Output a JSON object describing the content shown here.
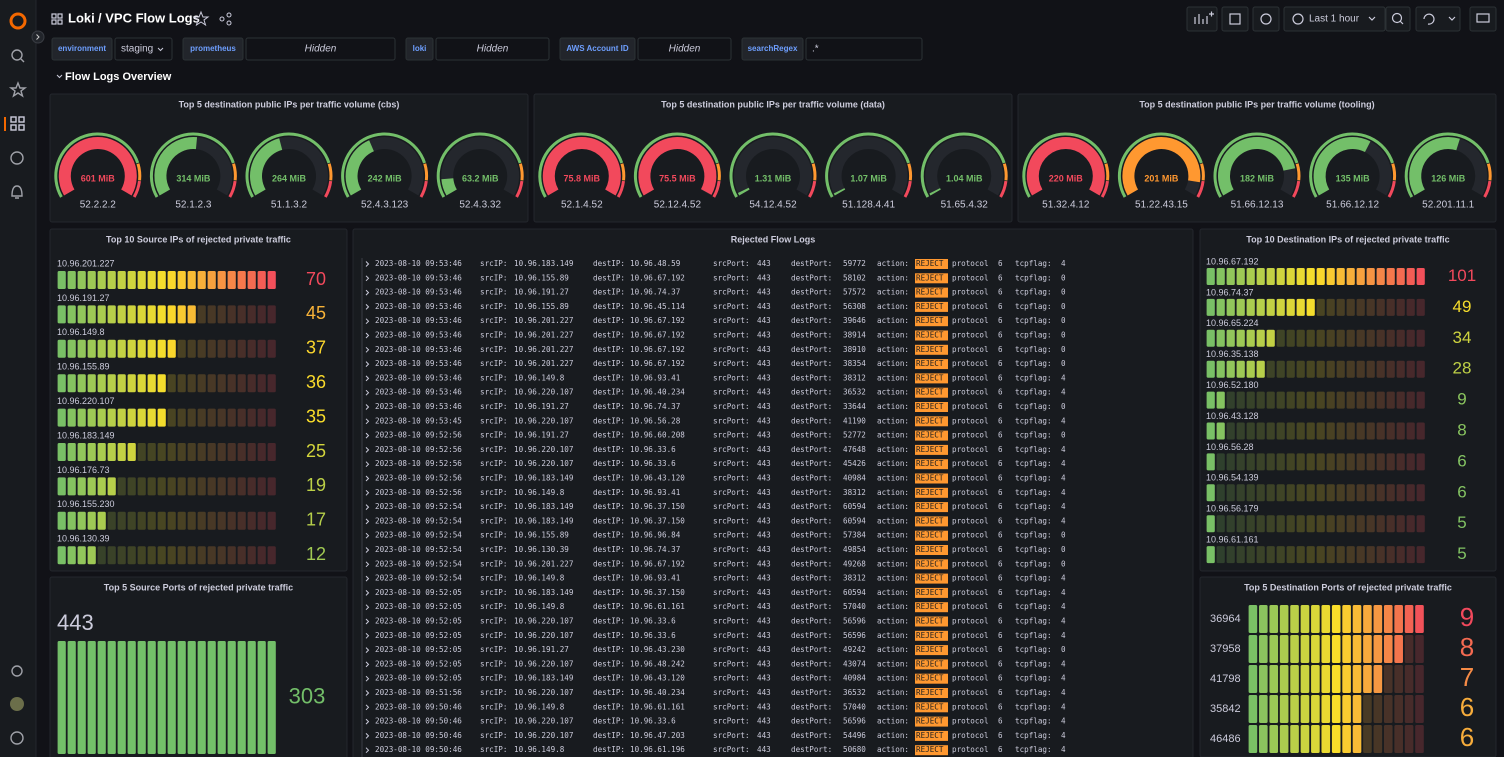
{
  "header": {
    "folder": "Loki",
    "title": "/ VPC Flow Logs",
    "time_range": "Last 1 hour"
  },
  "variables": [
    {
      "label": "environment",
      "value": "staging"
    },
    {
      "label": "prometheus",
      "value": "Hidden"
    },
    {
      "label": "loki",
      "value": "Hidden"
    },
    {
      "label": "AWS Account ID",
      "value": "Hidden"
    },
    {
      "label": "searchRegex",
      "value": ".*"
    }
  ],
  "row_title": "Flow Logs Overview",
  "gauge_panels": [
    {
      "title": "Top 5 destination public IPs per traffic volume (cbs)",
      "gauges": [
        {
          "label": "52.2.2.2",
          "value": 601,
          "value_label": "601 MiB",
          "color": "#f2495c"
        },
        {
          "label": "52.1.2.3",
          "value": 314,
          "value_label": "314 MiB",
          "color": "#73bf69"
        },
        {
          "label": "51.1.3.2",
          "value": 264,
          "value_label": "264 MiB",
          "color": "#73bf69"
        },
        {
          "label": "52.4.3.123",
          "value": 242,
          "value_label": "242 MiB",
          "color": "#73bf69"
        },
        {
          "label": "52.4.3.32",
          "value": 63.2,
          "value_label": "63.2 MiB",
          "color": "#73bf69"
        }
      ]
    },
    {
      "title": "Top 5 destination public IPs per traffic volume (data)",
      "gauges": [
        {
          "label": "52.1.4.52",
          "value": 75.8,
          "value_label": "75.8 MiB",
          "color": "#f2495c"
        },
        {
          "label": "52.12.4.52",
          "value": 75.5,
          "value_label": "75.5 MiB",
          "color": "#f2495c"
        },
        {
          "label": "54.12.4.52",
          "value": 1.31,
          "value_label": "1.31 MiB",
          "color": "#73bf69"
        },
        {
          "label": "51.128.4.41",
          "value": 1.07,
          "value_label": "1.07 MiB",
          "color": "#73bf69"
        },
        {
          "label": "51.65.4.32",
          "value": 1.04,
          "value_label": "1.04 MiB",
          "color": "#73bf69"
        }
      ]
    },
    {
      "title": "Top 5 destination public IPs per traffic volume (tooling)",
      "gauges": [
        {
          "label": "51.32.4.12",
          "value": 220,
          "value_label": "220 MiB",
          "color": "#f2495c"
        },
        {
          "label": "51.22.43.15",
          "value": 201,
          "value_label": "201 MiB",
          "color": "#ff9830"
        },
        {
          "label": "51.66.12.13",
          "value": 182,
          "value_label": "182 MiB",
          "color": "#73bf69"
        },
        {
          "label": "51.66.12.12",
          "value": 135,
          "value_label": "135 MiB",
          "color": "#73bf69"
        },
        {
          "label": "52.201.11.1",
          "value": 126,
          "value_label": "126 MiB",
          "color": "#73bf69"
        }
      ]
    }
  ],
  "source_ips": {
    "title": "Top 10 Source IPs of rejected private traffic",
    "colors": [
      "#73bf69",
      "#fade2a",
      "#f2495c"
    ],
    "items": [
      {
        "label": "10.96.201.227",
        "value": 70
      },
      {
        "label": "10.96.191.27",
        "value": 45
      },
      {
        "label": "10.96.149.8",
        "value": 37
      },
      {
        "label": "10.96.155.89",
        "value": 36
      },
      {
        "label": "10.96.220.107",
        "value": 35
      },
      {
        "label": "10.96.183.149",
        "value": 25
      },
      {
        "label": "10.96.176.73",
        "value": 19
      },
      {
        "label": "10.96.155.230",
        "value": 17
      },
      {
        "label": "10.96.130.39",
        "value": 12
      }
    ]
  },
  "destination_ips": {
    "title": "Top 10 Destination IPs of rejected private traffic",
    "colors": [
      "#73bf69",
      "#fade2a",
      "#f2495c"
    ],
    "items": [
      {
        "label": "10.96.67.192",
        "value": 101
      },
      {
        "label": "10.96.74.37",
        "value": 49
      },
      {
        "label": "10.96.65.224",
        "value": 34
      },
      {
        "label": "10.96.35.138",
        "value": 28
      },
      {
        "label": "10.96.52.180",
        "value": 9
      },
      {
        "label": "10.96.43.128",
        "value": 8
      },
      {
        "label": "10.96.56.28",
        "value": 6
      },
      {
        "label": "10.96.54.139",
        "value": 6
      },
      {
        "label": "10.96.56.179",
        "value": 5
      },
      {
        "label": "10.96.61.161",
        "value": 5
      }
    ]
  },
  "source_ports": {
    "title": "Top 5 Source Ports of rejected private traffic",
    "colors": [
      "#73bf69"
    ],
    "items": [
      {
        "label": "443",
        "value": 303
      }
    ]
  },
  "destination_ports": {
    "title": "Top 5 Destination Ports of rejected private traffic",
    "colors": [
      "#73bf69",
      "#fade2a",
      "#f2495c"
    ],
    "items": [
      {
        "label": "36964",
        "value": 9
      },
      {
        "label": "37958",
        "value": 8
      },
      {
        "label": "41798",
        "value": 7
      },
      {
        "label": "35842",
        "value": 6
      },
      {
        "label": "46486",
        "value": 6
      }
    ]
  },
  "logs": {
    "title": "Rejected Flow Logs",
    "field_labels": [
      "srcIP:",
      "destIP:",
      "srcPort:",
      "destPort:",
      "action:",
      "protocol",
      "tcpflag:"
    ],
    "rows": [
      [
        "2023-08-10 09:53:46",
        "10.96.183.149",
        "10.96.48.59",
        "443",
        "59772",
        "REJECT",
        "6",
        "4"
      ],
      [
        "2023-08-10 09:53:46",
        "10.96.155.89",
        "10.96.67.192",
        "443",
        "58102",
        "REJECT",
        "6",
        "0"
      ],
      [
        "2023-08-10 09:53:46",
        "10.96.191.27",
        "10.96.74.37",
        "443",
        "57572",
        "REJECT",
        "6",
        "0"
      ],
      [
        "2023-08-10 09:53:46",
        "10.96.155.89",
        "10.96.45.114",
        "443",
        "56308",
        "REJECT",
        "6",
        "0"
      ],
      [
        "2023-08-10 09:53:46",
        "10.96.201.227",
        "10.96.67.192",
        "443",
        "39646",
        "REJECT",
        "6",
        "0"
      ],
      [
        "2023-08-10 09:53:46",
        "10.96.201.227",
        "10.96.67.192",
        "443",
        "38914",
        "REJECT",
        "6",
        "0"
      ],
      [
        "2023-08-10 09:53:46",
        "10.96.201.227",
        "10.96.67.192",
        "443",
        "38910",
        "REJECT",
        "6",
        "0"
      ],
      [
        "2023-08-10 09:53:46",
        "10.96.201.227",
        "10.96.67.192",
        "443",
        "38354",
        "REJECT",
        "6",
        "0"
      ],
      [
        "2023-08-10 09:53:46",
        "10.96.149.8",
        "10.96.93.41",
        "443",
        "38312",
        "REJECT",
        "6",
        "4"
      ],
      [
        "2023-08-10 09:53:46",
        "10.96.220.107",
        "10.96.40.234",
        "443",
        "36532",
        "REJECT",
        "6",
        "4"
      ],
      [
        "2023-08-10 09:53:46",
        "10.96.191.27",
        "10.96.74.37",
        "443",
        "33644",
        "REJECT",
        "6",
        "0"
      ],
      [
        "2023-08-10 09:53:45",
        "10.96.220.107",
        "10.96.56.28",
        "443",
        "41190",
        "REJECT",
        "6",
        "4"
      ],
      [
        "2023-08-10 09:52:56",
        "10.96.191.27",
        "10.96.60.208",
        "443",
        "52772",
        "REJECT",
        "6",
        "0"
      ],
      [
        "2023-08-10 09:52:56",
        "10.96.220.107",
        "10.96.33.6",
        "443",
        "47648",
        "REJECT",
        "6",
        "4"
      ],
      [
        "2023-08-10 09:52:56",
        "10.96.220.107",
        "10.96.33.6",
        "443",
        "45426",
        "REJECT",
        "6",
        "4"
      ],
      [
        "2023-08-10 09:52:56",
        "10.96.183.149",
        "10.96.43.120",
        "443",
        "40984",
        "REJECT",
        "6",
        "4"
      ],
      [
        "2023-08-10 09:52:56",
        "10.96.149.8",
        "10.96.93.41",
        "443",
        "38312",
        "REJECT",
        "6",
        "4"
      ],
      [
        "2023-08-10 09:52:54",
        "10.96.183.149",
        "10.96.37.150",
        "443",
        "60594",
        "REJECT",
        "6",
        "4"
      ],
      [
        "2023-08-10 09:52:54",
        "10.96.183.149",
        "10.96.37.150",
        "443",
        "60594",
        "REJECT",
        "6",
        "4"
      ],
      [
        "2023-08-10 09:52:54",
        "10.96.155.89",
        "10.96.96.84",
        "443",
        "57384",
        "REJECT",
        "6",
        "0"
      ],
      [
        "2023-08-10 09:52:54",
        "10.96.130.39",
        "10.96.74.37",
        "443",
        "49854",
        "REJECT",
        "6",
        "0"
      ],
      [
        "2023-08-10 09:52:54",
        "10.96.201.227",
        "10.96.67.192",
        "443",
        "49268",
        "REJECT",
        "6",
        "0"
      ],
      [
        "2023-08-10 09:52:54",
        "10.96.149.8",
        "10.96.93.41",
        "443",
        "38312",
        "REJECT",
        "6",
        "4"
      ],
      [
        "2023-08-10 09:52:05",
        "10.96.183.149",
        "10.96.37.150",
        "443",
        "60594",
        "REJECT",
        "6",
        "4"
      ],
      [
        "2023-08-10 09:52:05",
        "10.96.149.8",
        "10.96.61.161",
        "443",
        "57040",
        "REJECT",
        "6",
        "4"
      ],
      [
        "2023-08-10 09:52:05",
        "10.96.220.107",
        "10.96.33.6",
        "443",
        "56596",
        "REJECT",
        "6",
        "4"
      ],
      [
        "2023-08-10 09:52:05",
        "10.96.220.107",
        "10.96.33.6",
        "443",
        "56596",
        "REJECT",
        "6",
        "4"
      ],
      [
        "2023-08-10 09:52:05",
        "10.96.191.27",
        "10.96.43.230",
        "443",
        "49242",
        "REJECT",
        "6",
        "0"
      ],
      [
        "2023-08-10 09:52:05",
        "10.96.220.107",
        "10.96.48.242",
        "443",
        "43074",
        "REJECT",
        "6",
        "4"
      ],
      [
        "2023-08-10 09:52:05",
        "10.96.183.149",
        "10.96.43.120",
        "443",
        "40984",
        "REJECT",
        "6",
        "4"
      ],
      [
        "2023-08-10 09:51:56",
        "10.96.220.107",
        "10.96.40.234",
        "443",
        "36532",
        "REJECT",
        "6",
        "4"
      ],
      [
        "2023-08-10 09:50:46",
        "10.96.149.8",
        "10.96.61.161",
        "443",
        "57040",
        "REJECT",
        "6",
        "4"
      ],
      [
        "2023-08-10 09:50:46",
        "10.96.220.107",
        "10.96.33.6",
        "443",
        "56596",
        "REJECT",
        "6",
        "4"
      ],
      [
        "2023-08-10 09:50:46",
        "10.96.220.107",
        "10.96.47.203",
        "443",
        "54496",
        "REJECT",
        "6",
        "4"
      ],
      [
        "2023-08-10 09:50:46",
        "10.96.149.8",
        "10.96.61.196",
        "443",
        "50680",
        "REJECT",
        "6",
        "4"
      ]
    ]
  }
}
